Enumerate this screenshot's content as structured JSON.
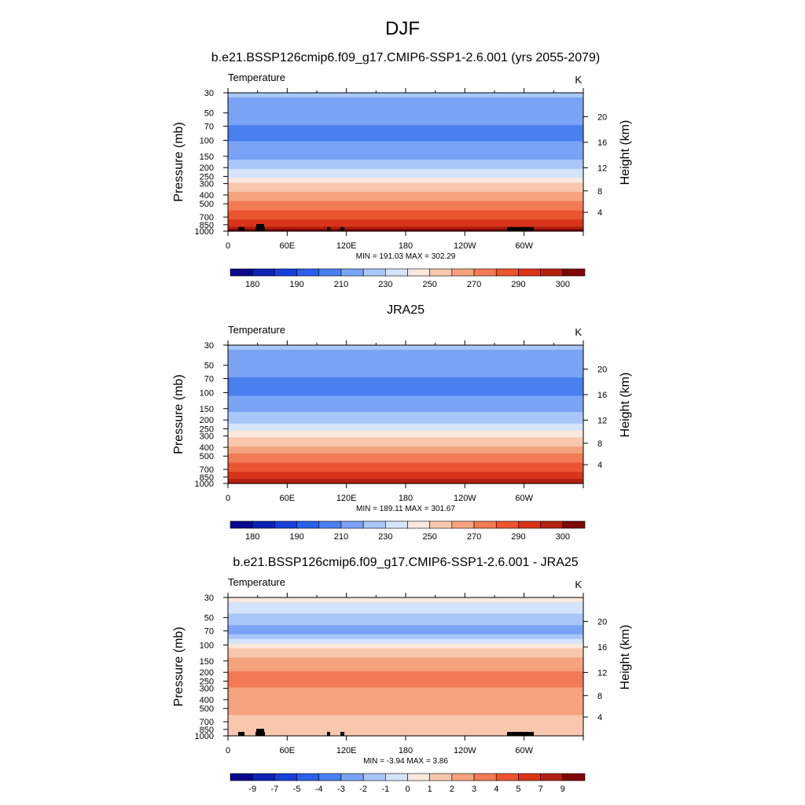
{
  "figure": {
    "title": "DJF"
  },
  "chart_data": [
    {
      "type": "heatmap",
      "title": "b.e21.BSSP126cmip6.f09_g17.CMIP6-SSP1-2.6.001 (yrs 2055-2079)",
      "variable": "Temperature",
      "units": "K",
      "xlabel": "",
      "ylabel": "Pressure (mb)",
      "ylabel_right": "Height (km)",
      "x_ticks": [
        "0",
        "60E",
        "120E",
        "180",
        "120W",
        "60W"
      ],
      "y_ticks": [
        "30",
        "50",
        "70",
        "100",
        "150",
        "200",
        "250",
        "300",
        "400",
        "500",
        "700",
        "850",
        "1000"
      ],
      "y_right_ticks": [
        "20",
        "16",
        "12",
        "8",
        "4"
      ],
      "stats": "MIN = 191.03  MAX = 302.29",
      "colorbar": {
        "levels": [
          175,
          180,
          185,
          190,
          200,
          210,
          220,
          230,
          240,
          250,
          260,
          270,
          280,
          290,
          295,
          300
        ],
        "labels": [
          "180",
          "190",
          "210",
          "230",
          "250",
          "270",
          "290",
          "300"
        ],
        "colors": [
          "#08088c",
          "#0b23b4",
          "#1740d6",
          "#2a5fe8",
          "#4a7ff0",
          "#7aa3f5",
          "#a8c6f8",
          "#d3e4fb",
          "#fbe8dc",
          "#f8c7ad",
          "#f5a27f",
          "#f27a55",
          "#ea5530",
          "#d8351a",
          "#b4200f",
          "#800606"
        ]
      },
      "profile_values": [
        {
          "p": 30,
          "v": 212
        },
        {
          "p": 50,
          "v": 204
        },
        {
          "p": 70,
          "v": 200
        },
        {
          "p": 100,
          "v": 199
        },
        {
          "p": 150,
          "v": 208
        },
        {
          "p": 200,
          "v": 218
        },
        {
          "p": 250,
          "v": 228
        },
        {
          "p": 300,
          "v": 240
        },
        {
          "p": 400,
          "v": 253
        },
        {
          "p": 500,
          "v": 263
        },
        {
          "p": 700,
          "v": 278
        },
        {
          "p": 850,
          "v": 287
        },
        {
          "p": 1000,
          "v": 298
        }
      ]
    },
    {
      "type": "heatmap",
      "title": "JRA25",
      "variable": "Temperature",
      "units": "K",
      "xlabel": "",
      "ylabel": "Pressure (mb)",
      "ylabel_right": "Height (km)",
      "x_ticks": [
        "0",
        "60E",
        "120E",
        "180",
        "120W",
        "60W"
      ],
      "y_ticks": [
        "30",
        "50",
        "70",
        "100",
        "150",
        "200",
        "250",
        "300",
        "400",
        "500",
        "700",
        "850",
        "1000"
      ],
      "y_right_ticks": [
        "20",
        "16",
        "12",
        "8",
        "4"
      ],
      "stats": "MIN = 189.11  MAX = 301.67",
      "colorbar": {
        "levels": [
          175,
          180,
          185,
          190,
          200,
          210,
          220,
          230,
          240,
          250,
          260,
          270,
          280,
          290,
          295,
          300
        ],
        "labels": [
          "180",
          "190",
          "210",
          "230",
          "250",
          "270",
          "290",
          "300"
        ],
        "colors": [
          "#08088c",
          "#0b23b4",
          "#1740d6",
          "#2a5fe8",
          "#4a7ff0",
          "#7aa3f5",
          "#a8c6f8",
          "#d3e4fb",
          "#fbe8dc",
          "#f8c7ad",
          "#f5a27f",
          "#f27a55",
          "#ea5530",
          "#d8351a",
          "#b4200f",
          "#800606"
        ]
      },
      "profile_values": [
        {
          "p": 30,
          "v": 212
        },
        {
          "p": 50,
          "v": 204
        },
        {
          "p": 70,
          "v": 200
        },
        {
          "p": 100,
          "v": 198
        },
        {
          "p": 150,
          "v": 207
        },
        {
          "p": 200,
          "v": 217
        },
        {
          "p": 250,
          "v": 227
        },
        {
          "p": 300,
          "v": 239
        },
        {
          "p": 400,
          "v": 252
        },
        {
          "p": 500,
          "v": 262
        },
        {
          "p": 700,
          "v": 277
        },
        {
          "p": 850,
          "v": 286
        },
        {
          "p": 1000,
          "v": 296
        }
      ]
    },
    {
      "type": "heatmap",
      "title": "b.e21.BSSP126cmip6.f09_g17.CMIP6-SSP1-2.6.001 - JRA25",
      "variable": "Temperature",
      "units": "K",
      "xlabel": "",
      "ylabel": "Pressure (mb)",
      "ylabel_right": "Height (km)",
      "x_ticks": [
        "0",
        "60E",
        "120E",
        "180",
        "120W",
        "60W"
      ],
      "y_ticks": [
        "30",
        "50",
        "70",
        "100",
        "150",
        "200",
        "250",
        "300",
        "400",
        "500",
        "700",
        "850",
        "1000"
      ],
      "y_right_ticks": [
        "20",
        "16",
        "12",
        "8",
        "4"
      ],
      "stats": "MIN =  -3.94  MAX =   3.86",
      "colorbar": {
        "levels": [
          -9,
          -7,
          -5,
          -4,
          -3,
          -2,
          -1,
          0,
          1,
          2,
          3,
          4,
          5,
          7,
          9
        ],
        "labels": [
          "-9",
          "-7",
          "-5",
          "-4",
          "-3",
          "-2",
          "-1",
          "0",
          "1",
          "2",
          "3",
          "4",
          "5",
          "7",
          "9"
        ],
        "colors": [
          "#08088c",
          "#0b23b4",
          "#1740d6",
          "#2a5fe8",
          "#4a7ff0",
          "#7aa3f5",
          "#a8c6f8",
          "#d3e4fb",
          "#fbe8dc",
          "#f8c7ad",
          "#f5a27f",
          "#f27a55",
          "#ea5530",
          "#d8351a",
          "#b4200f",
          "#800606"
        ]
      },
      "profile_values": [
        {
          "p": 30,
          "v": 0.5
        },
        {
          "p": 50,
          "v": -1.5
        },
        {
          "p": 70,
          "v": -2.5
        },
        {
          "p": 100,
          "v": 0.5
        },
        {
          "p": 150,
          "v": 2.5
        },
        {
          "p": 200,
          "v": 3.0
        },
        {
          "p": 250,
          "v": 3.0
        },
        {
          "p": 300,
          "v": 3.0
        },
        {
          "p": 400,
          "v": 2.5
        },
        {
          "p": 500,
          "v": 2.5
        },
        {
          "p": 700,
          "v": 1.5
        },
        {
          "p": 850,
          "v": 1.0
        },
        {
          "p": 1000,
          "v": 1.5
        }
      ]
    }
  ]
}
